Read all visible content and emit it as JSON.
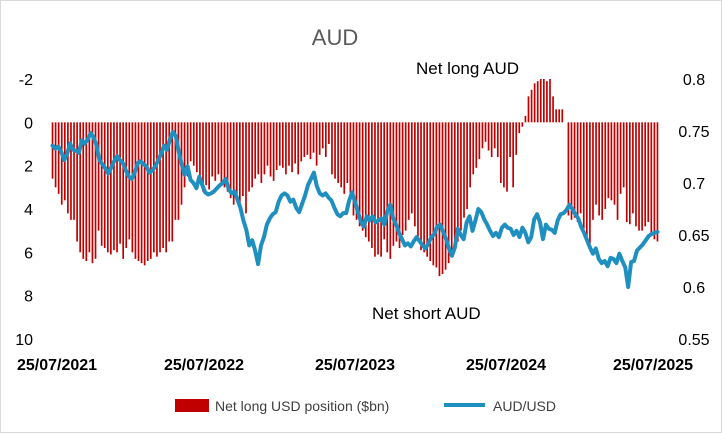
{
  "chart_data": {
    "type": "bar+line",
    "title": "AUD",
    "annotations": {
      "top": "Net long AUD",
      "bottom": "Net short AUD"
    },
    "x_tick_labels": [
      "25/07/2021",
      "25/07/2022",
      "25/07/2023",
      "25/07/2024",
      "25/07/2025"
    ],
    "left_axis": {
      "ticks": [
        "-2",
        "0",
        "2",
        "4",
        "6",
        "8",
        "10"
      ],
      "values": [
        -2,
        0,
        2,
        4,
        6,
        8,
        10
      ],
      "range": [
        -2,
        10
      ],
      "inverted": true
    },
    "right_axis": {
      "ticks": [
        "0.8",
        "0.75",
        "0.7",
        "0.65",
        "0.6",
        "0.55"
      ],
      "values": [
        0.8,
        0.75,
        0.7,
        0.65,
        0.6,
        0.55
      ],
      "range": [
        0.55,
        0.8
      ]
    },
    "legend": {
      "bars": "Net long USD position ($bn)",
      "line": "AUD/USD",
      "position": "bottom"
    },
    "colors": {
      "bars": "#c00000",
      "line": "#1f8fbf"
    },
    "series": [
      {
        "name": "Net long USD position ($bn)",
        "axis": "left",
        "type": "bar",
        "x_start": "2021-07-25",
        "interval": "weekly",
        "values": [
          2.6,
          3.0,
          3.3,
          3.8,
          3.6,
          4.2,
          4.5,
          4.5,
          5.5,
          6.0,
          6.3,
          6.4,
          6.0,
          6.5,
          6.3,
          5.0,
          5.7,
          5.8,
          6.0,
          6.1,
          5.9,
          6.0,
          5.6,
          6.3,
          5.8,
          5.4,
          6.0,
          6.3,
          6.4,
          6.5,
          6.6,
          6.4,
          6.3,
          6.0,
          6.2,
          6.0,
          5.8,
          6.0,
          5.5,
          5.5,
          4.5,
          4.5,
          3.8,
          3.0,
          2.5,
          1.8,
          2.0,
          2.3,
          2.8,
          3.2,
          2.9,
          3.1,
          2.5,
          2.7,
          2.4,
          2.8,
          3.0,
          3.2,
          3.5,
          3.8,
          3.6,
          3.9,
          3.4,
          4.2,
          3.2,
          3.0,
          2.6,
          2.4,
          2.8,
          2.4,
          2.0,
          2.5,
          2.7,
          2.2,
          2.0,
          2.1,
          2.4,
          2.0,
          2.3,
          1.9,
          2.4,
          1.8,
          1.6,
          1.5,
          1.7,
          1.4,
          2.0,
          1.5,
          1.2,
          1.6,
          1.0,
          2.4,
          2.6,
          2.8,
          3.0,
          3.3,
          2.8,
          3.5,
          4.3,
          4.5,
          4.8,
          5.0,
          5.3,
          5.5,
          5.8,
          6.2,
          6.1,
          6.2,
          5.4,
          6.0,
          6.3,
          5.7,
          5.5,
          5.8,
          5.2,
          5.0,
          4.5,
          4.2,
          4.8,
          5.3,
          5.9,
          6.0,
          6.2,
          6.4,
          6.6,
          6.7,
          7.1,
          7.0,
          6.8,
          6.5,
          6.2,
          5.8,
          5.5,
          5.0,
          4.4,
          4.0,
          3.0,
          2.4,
          2.1,
          1.7,
          1.2,
          0.9,
          1.3,
          1.6,
          1.2,
          1.6,
          2.8,
          3.0,
          3.2,
          1.6,
          3.0,
          1.5,
          0.5,
          0.2,
          -0.3,
          -1.2,
          -1.5,
          -1.8,
          -1.9,
          -2.0,
          -2.0,
          -1.9,
          -2.0,
          -1.2,
          -0.6,
          -0.6,
          -0.6,
          0.0,
          4.3,
          4.5,
          4.4,
          4.6,
          4.2,
          4.9,
          5.5,
          5.6,
          4.5,
          3.8,
          4.3,
          4.5,
          4.0,
          3.5,
          3.6,
          3.8,
          4.5,
          3.3,
          3.0,
          4.6,
          4.7,
          4.2,
          4.8,
          5.0,
          5.0,
          4.8,
          4.6,
          5.2,
          5.4,
          5.5
        ]
      },
      {
        "name": "AUD/USD",
        "axis": "right",
        "type": "line",
        "x_start": "2021-07-25",
        "interval": "weekly",
        "values": [
          0.736,
          0.733,
          0.735,
          0.73,
          0.722,
          0.728,
          0.738,
          0.732,
          0.731,
          0.729,
          0.741,
          0.738,
          0.742,
          0.748,
          0.744,
          0.736,
          0.722,
          0.718,
          0.714,
          0.709,
          0.715,
          0.721,
          0.726,
          0.722,
          0.719,
          0.712,
          0.706,
          0.704,
          0.71,
          0.719,
          0.721,
          0.718,
          0.716,
          0.71,
          0.712,
          0.716,
          0.722,
          0.728,
          0.736,
          0.732,
          0.742,
          0.749,
          0.745,
          0.73,
          0.718,
          0.708,
          0.716,
          0.703,
          0.7,
          0.695,
          0.706,
          0.698,
          0.691,
          0.689,
          0.69,
          0.692,
          0.695,
          0.698,
          0.7,
          0.704,
          0.694,
          0.69,
          0.692,
          0.684,
          0.676,
          0.664,
          0.655,
          0.64,
          0.645,
          0.635,
          0.622,
          0.64,
          0.648,
          0.66,
          0.666,
          0.67,
          0.672,
          0.682,
          0.688,
          0.69,
          0.688,
          0.682,
          0.684,
          0.676,
          0.672,
          0.68,
          0.688,
          0.698,
          0.704,
          0.71,
          0.697,
          0.69,
          0.688,
          0.69,
          0.686,
          0.683,
          0.676,
          0.67,
          0.668,
          0.671,
          0.671,
          0.683,
          0.691,
          0.682,
          0.672,
          0.663,
          0.658,
          0.668,
          0.664,
          0.668,
          0.662,
          0.664,
          0.666,
          0.66,
          0.673,
          0.679,
          0.666,
          0.66,
          0.652,
          0.646,
          0.64,
          0.642,
          0.639,
          0.644,
          0.648,
          0.644,
          0.64,
          0.637,
          0.642,
          0.648,
          0.651,
          0.658,
          0.66,
          0.653,
          0.646,
          0.637,
          0.63,
          0.638,
          0.656,
          0.65,
          0.646,
          0.662,
          0.668,
          0.654,
          0.664,
          0.675,
          0.672,
          0.665,
          0.66,
          0.654,
          0.649,
          0.652,
          0.648,
          0.657,
          0.66,
          0.657,
          0.656,
          0.65,
          0.654,
          0.648,
          0.657,
          0.652,
          0.643,
          0.648,
          0.665,
          0.67,
          0.662,
          0.646,
          0.66,
          0.656,
          0.655,
          0.652,
          0.664,
          0.67,
          0.671,
          0.674,
          0.679,
          0.675,
          0.67,
          0.666,
          0.658,
          0.652,
          0.645,
          0.638,
          0.632,
          0.637,
          0.627,
          0.623,
          0.625,
          0.62,
          0.628,
          0.627,
          0.623,
          0.632,
          0.625,
          0.619,
          0.6,
          0.624,
          0.625,
          0.635,
          0.638,
          0.641,
          0.645,
          0.649,
          0.651,
          0.652,
          0.653
        ]
      }
    ]
  }
}
